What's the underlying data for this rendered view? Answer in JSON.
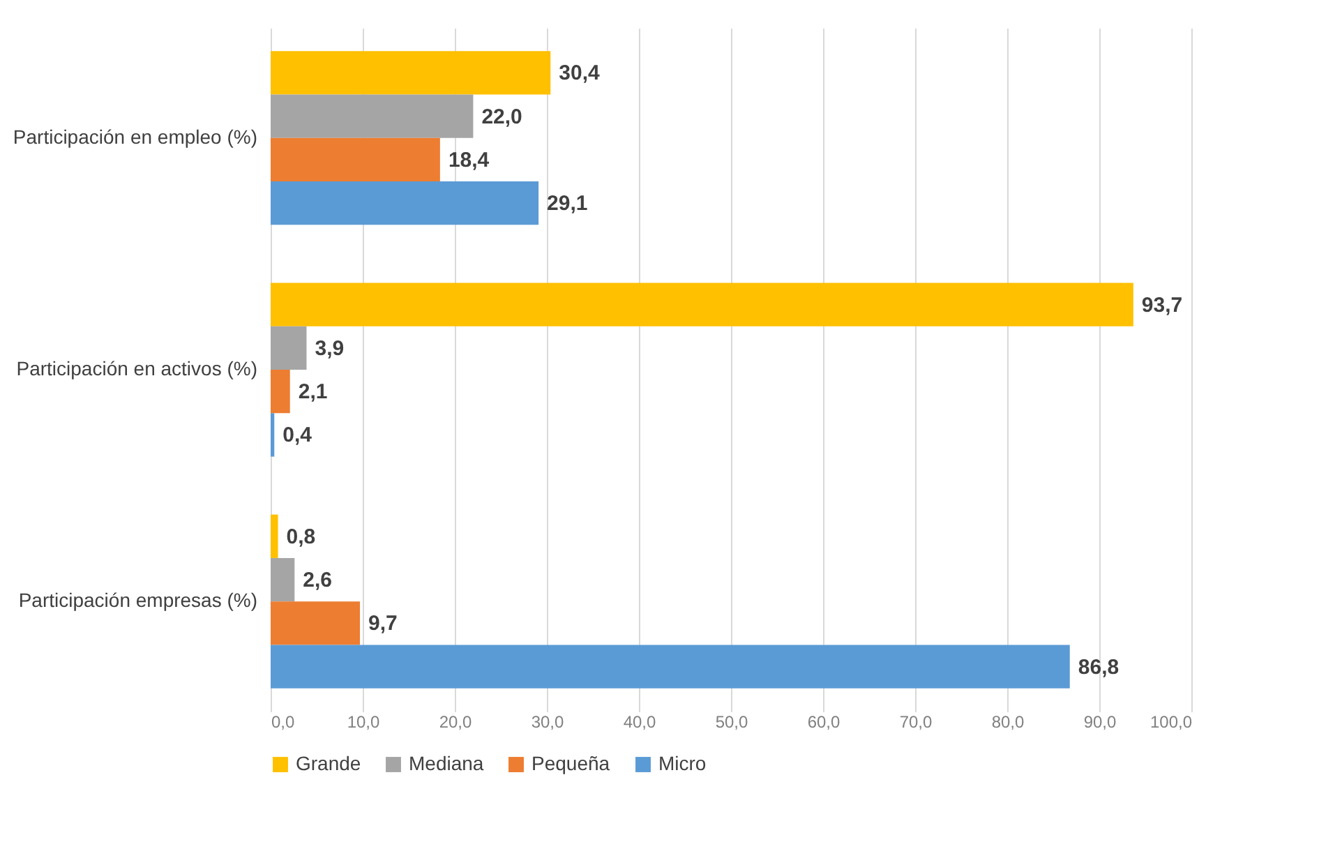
{
  "chart_data": {
    "type": "bar",
    "orientation": "horizontal",
    "categories": [
      "Participación en empleo (%)",
      "Participación en activos (%)",
      "Participación empresas (%)"
    ],
    "series": [
      {
        "name": "Grande",
        "color": "#ffc000",
        "values": [
          30.4,
          93.7,
          0.8
        ],
        "value_labels": [
          "30,4",
          "93,7",
          "0,8"
        ]
      },
      {
        "name": "Mediana",
        "color": "#a5a5a5",
        "values": [
          22.0,
          3.9,
          2.6
        ],
        "value_labels": [
          "22,0",
          "3,9",
          "2,6"
        ]
      },
      {
        "name": "Pequeña",
        "color": "#ed7d31",
        "values": [
          18.4,
          2.1,
          9.7
        ],
        "value_labels": [
          "18,4",
          "2,1",
          "9,7"
        ]
      },
      {
        "name": "Micro",
        "color": "#5b9bd5",
        "values": [
          29.1,
          0.4,
          86.8
        ],
        "value_labels": [
          "29,1",
          "0,4",
          "86,8"
        ]
      }
    ],
    "xlim": [
      0,
      100
    ],
    "xticks": [
      {
        "value": 0,
        "label": "0,0"
      },
      {
        "value": 10,
        "label": "10,0"
      },
      {
        "value": 20,
        "label": "20,0"
      },
      {
        "value": 30,
        "label": "30,0"
      },
      {
        "value": 40,
        "label": "40,0"
      },
      {
        "value": 50,
        "label": "50,0"
      },
      {
        "value": 60,
        "label": "60,0"
      },
      {
        "value": 70,
        "label": "70,0"
      },
      {
        "value": 80,
        "label": "80,0"
      },
      {
        "value": 90,
        "label": "90,0"
      },
      {
        "value": 100,
        "label": "100,0"
      }
    ],
    "grid": "x",
    "legend": "bottom"
  }
}
